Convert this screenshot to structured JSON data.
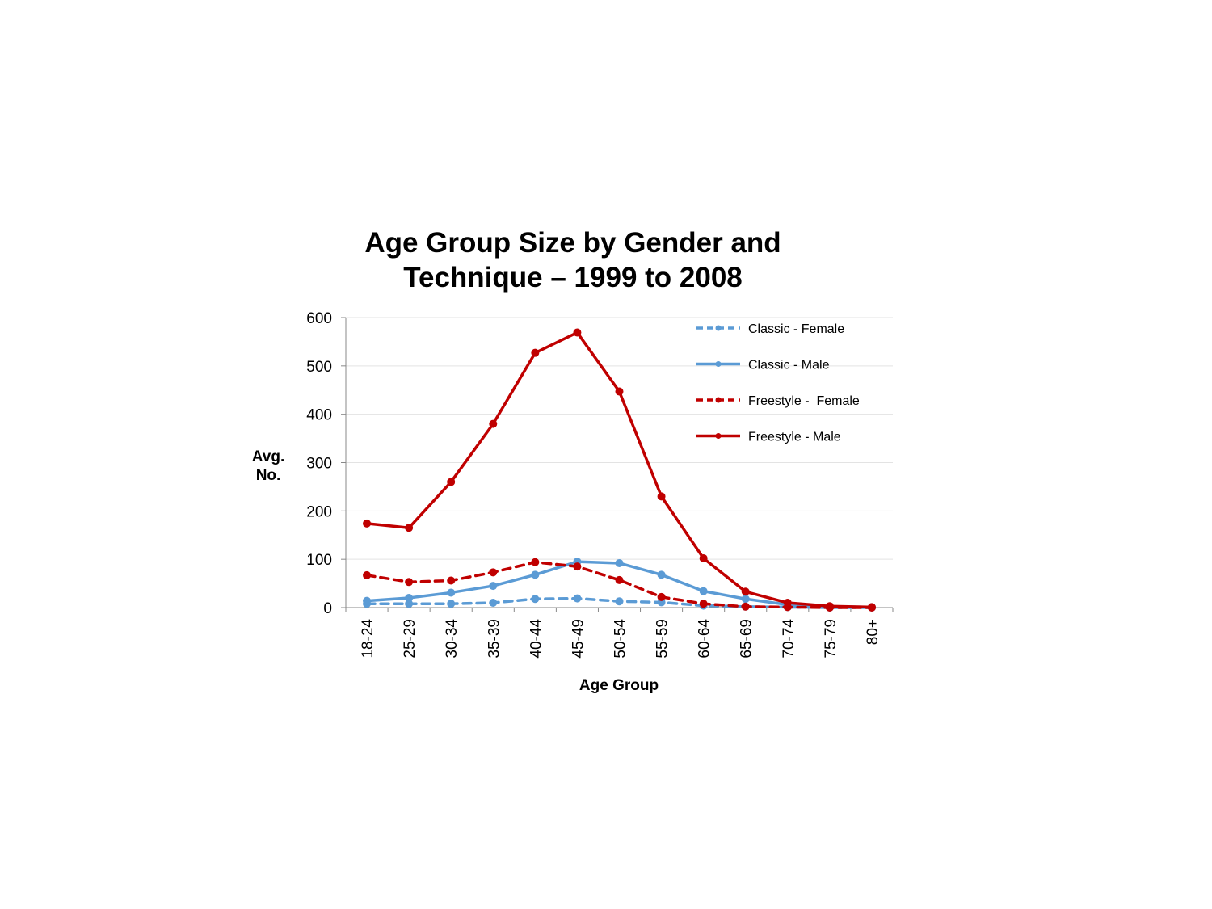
{
  "chart_data": {
    "type": "line",
    "title_line1": "Age Group Size by Gender and",
    "title_line2": "Technique – 1999 to 2008",
    "xlabel": "Age Group",
    "ylabel_line1": "Avg.",
    "ylabel_line2": "No.",
    "ylim": [
      0,
      600
    ],
    "yticks": [
      0,
      100,
      200,
      300,
      400,
      500,
      600
    ],
    "grid": "horizontal",
    "legend_position": "top-right",
    "categories": [
      "18-24",
      "25-29",
      "30-34",
      "35-39",
      "40-44",
      "45-49",
      "50-54",
      "55-59",
      "60-64",
      "65-69",
      "70-74",
      "75-79",
      "80+"
    ],
    "series": [
      {
        "name": "Classic - Female",
        "color": "#5b9bd5",
        "dashed": true,
        "values": [
          8,
          8,
          8,
          10,
          18,
          19,
          13,
          11,
          4,
          2,
          1,
          0,
          0
        ]
      },
      {
        "name": "Classic - Male",
        "color": "#5b9bd5",
        "dashed": false,
        "values": [
          14,
          20,
          31,
          45,
          68,
          95,
          92,
          68,
          34,
          18,
          6,
          2,
          1
        ]
      },
      {
        "name": "Freestyle -  Female",
        "color": "#c00000",
        "dashed": true,
        "values": [
          67,
          53,
          56,
          73,
          94,
          85,
          57,
          22,
          8,
          2,
          1,
          0,
          0
        ]
      },
      {
        "name": "Freestyle - Male",
        "color": "#c00000",
        "dashed": false,
        "values": [
          174,
          165,
          260,
          380,
          527,
          569,
          447,
          230,
          102,
          33,
          10,
          3,
          1
        ]
      }
    ]
  }
}
